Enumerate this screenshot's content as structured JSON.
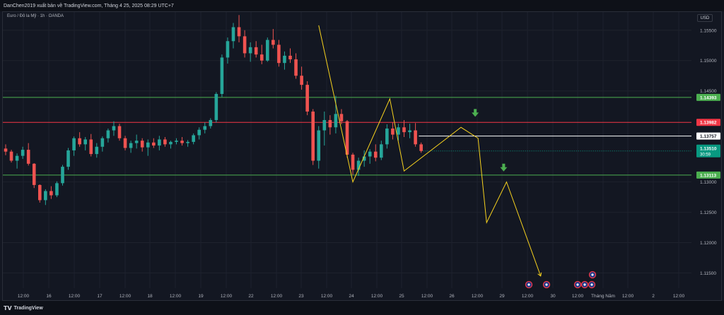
{
  "header": {
    "title": "DanChen2019 xuất bản về TradingView.com, Tháng 4 25, 2025 08:29 UTC+7"
  },
  "symbol": {
    "label": "Euro / Đô la Mỹ · 1h · OANDA"
  },
  "currency_button": "USD",
  "footer": {
    "brand": "TradingView"
  },
  "colors": {
    "background": "#131722",
    "up_candle": "#26a69a",
    "down_candle": "#ef5350",
    "support_line": "#4caf50",
    "resistance_line": "#f23645",
    "current_line": "#ffffff",
    "projection": "#f7d21e",
    "arrow": "#4caf50"
  },
  "chart_data": {
    "type": "candlestick",
    "title": "",
    "xlabel": "",
    "ylabel": "",
    "ylim": [
      1.1125,
      1.158
    ],
    "grid": true,
    "y_ticks": [
      "1.15500",
      "1.15000",
      "1.14500",
      "1.13000",
      "1.12500",
      "1.12000",
      "1.11500"
    ],
    "y_tick_values": [
      1.155,
      1.15,
      1.145,
      1.13,
      1.125,
      1.12,
      1.115
    ],
    "x_ticks": [
      "12:00",
      "16",
      "12:00",
      "17",
      "12:00",
      "18",
      "12:00",
      "19",
      "12:00",
      "22",
      "12:00",
      "23",
      "12:00",
      "24",
      "12:00",
      "25",
      "12:00",
      "26",
      "12:00",
      "29",
      "12:00",
      "30",
      "12:00",
      "Tháng Năm",
      "12:00",
      "2",
      "12:00"
    ],
    "price_levels": [
      {
        "label": "1.14393",
        "value": 1.14393,
        "style": "support",
        "color": "#4caf50"
      },
      {
        "label": "1.13982",
        "value": 1.13982,
        "style": "resistance",
        "color": "#f23645"
      },
      {
        "label": "1.13757",
        "value": 1.13757,
        "style": "current",
        "color": "#ffffff"
      },
      {
        "label": "1.13113",
        "value": 1.13113,
        "style": "support",
        "color": "#4caf50"
      }
    ],
    "last_price": {
      "label": "1.13510",
      "value": 1.1351,
      "countdown": "30:59",
      "color": "#089981"
    },
    "projection_path": [
      {
        "t": 55.0,
        "price": 1.1558
      },
      {
        "t": 61.0,
        "price": 1.13
      },
      {
        "t": 67.5,
        "price": 1.1437
      },
      {
        "t": 70.0,
        "price": 1.1318
      },
      {
        "t": 80.0,
        "price": 1.139
      },
      {
        "t": 83.0,
        "price": 1.1372
      },
      {
        "t": 84.5,
        "price": 1.1233
      },
      {
        "t": 88.0,
        "price": 1.13
      },
      {
        "t": 94.0,
        "price": 1.1145
      }
    ],
    "arrows": [
      {
        "t": 82.5,
        "price": 1.1412,
        "direction": "down"
      },
      {
        "t": 87.5,
        "price": 1.1322,
        "direction": "down"
      }
    ],
    "candles": [
      [
        1.1355,
        1.1362,
        1.1344,
        1.135
      ],
      [
        1.135,
        1.1353,
        1.1332,
        1.1335
      ],
      [
        1.1335,
        1.1347,
        1.1322,
        1.1343
      ],
      [
        1.1343,
        1.1358,
        1.1338,
        1.1353
      ],
      [
        1.1353,
        1.1364,
        1.1327,
        1.133
      ],
      [
        1.133,
        1.1331,
        1.129,
        1.1295
      ],
      [
        1.1295,
        1.1296,
        1.1266,
        1.127
      ],
      [
        1.127,
        1.1288,
        1.1262,
        1.1285
      ],
      [
        1.1285,
        1.1293,
        1.1272,
        1.1278
      ],
      [
        1.1278,
        1.1301,
        1.1275,
        1.1298
      ],
      [
        1.1298,
        1.1328,
        1.1294,
        1.1325
      ],
      [
        1.1325,
        1.1356,
        1.132,
        1.1352
      ],
      [
        1.1352,
        1.1375,
        1.1343,
        1.1372
      ],
      [
        1.1372,
        1.1382,
        1.1358,
        1.1362
      ],
      [
        1.1362,
        1.1374,
        1.1352,
        1.137
      ],
      [
        1.137,
        1.1379,
        1.1342,
        1.1346
      ],
      [
        1.1346,
        1.1364,
        1.134,
        1.1358
      ],
      [
        1.1358,
        1.1375,
        1.135,
        1.1372
      ],
      [
        1.1372,
        1.1388,
        1.1365,
        1.1385
      ],
      [
        1.1385,
        1.14,
        1.1376,
        1.1392
      ],
      [
        1.1392,
        1.1396,
        1.1368,
        1.1372
      ],
      [
        1.1372,
        1.1376,
        1.1352,
        1.1356
      ],
      [
        1.1356,
        1.1368,
        1.1348,
        1.1364
      ],
      [
        1.1364,
        1.1378,
        1.1355,
        1.1368
      ],
      [
        1.1368,
        1.1372,
        1.135,
        1.1357
      ],
      [
        1.1357,
        1.137,
        1.1343,
        1.1365
      ],
      [
        1.1365,
        1.1372,
        1.1356,
        1.136
      ],
      [
        1.136,
        1.1376,
        1.1352,
        1.137
      ],
      [
        1.137,
        1.1374,
        1.1358,
        1.1362
      ],
      [
        1.1362,
        1.1368,
        1.1355,
        1.1366
      ],
      [
        1.1366,
        1.1372,
        1.1362,
        1.1368
      ],
      [
        1.1368,
        1.1374,
        1.136,
        1.1364
      ],
      [
        1.1364,
        1.1369,
        1.1358,
        1.1366
      ],
      [
        1.1366,
        1.138,
        1.1362,
        1.1377
      ],
      [
        1.1377,
        1.139,
        1.137,
        1.1386
      ],
      [
        1.1386,
        1.1398,
        1.138,
        1.1392
      ],
      [
        1.1392,
        1.1405,
        1.1388,
        1.1402
      ],
      [
        1.1402,
        1.1448,
        1.1398,
        1.1445
      ],
      [
        1.1445,
        1.151,
        1.144,
        1.1505
      ],
      [
        1.1505,
        1.1538,
        1.1495,
        1.1532
      ],
      [
        1.1532,
        1.1562,
        1.152,
        1.1555
      ],
      [
        1.1555,
        1.1575,
        1.153,
        1.154
      ],
      [
        1.154,
        1.155,
        1.1505,
        1.1512
      ],
      [
        1.1512,
        1.153,
        1.1498,
        1.1522
      ],
      [
        1.1522,
        1.1532,
        1.1505,
        1.151
      ],
      [
        1.151,
        1.1526,
        1.1494,
        1.15
      ],
      [
        1.15,
        1.1538,
        1.1498,
        1.1534
      ],
      [
        1.1534,
        1.1552,
        1.152,
        1.1526
      ],
      [
        1.1526,
        1.1534,
        1.149,
        1.1496
      ],
      [
        1.1496,
        1.1515,
        1.1485,
        1.1508
      ],
      [
        1.1508,
        1.152,
        1.1496,
        1.1502
      ],
      [
        1.1502,
        1.1512,
        1.147,
        1.1475
      ],
      [
        1.1475,
        1.149,
        1.1452,
        1.146
      ],
      [
        1.146,
        1.1466,
        1.141,
        1.1416
      ],
      [
        1.1416,
        1.142,
        1.1328,
        1.1335
      ],
      [
        1.1335,
        1.1392,
        1.1322,
        1.1385
      ],
      [
        1.1385,
        1.1416,
        1.136,
        1.1402
      ],
      [
        1.1402,
        1.141,
        1.1378,
        1.139
      ],
      [
        1.139,
        1.1442,
        1.138,
        1.1412
      ],
      [
        1.1412,
        1.142,
        1.1395,
        1.14
      ],
      [
        1.14,
        1.1402,
        1.134,
        1.1345
      ],
      [
        1.1345,
        1.1348,
        1.1312,
        1.132
      ],
      [
        1.132,
        1.134,
        1.131,
        1.1335
      ],
      [
        1.1335,
        1.1352,
        1.1325,
        1.1342
      ],
      [
        1.1342,
        1.1354,
        1.133,
        1.135
      ],
      [
        1.135,
        1.1362,
        1.1334,
        1.134
      ],
      [
        1.134,
        1.1368,
        1.1336,
        1.1362
      ],
      [
        1.1362,
        1.1395,
        1.1355,
        1.1388
      ],
      [
        1.1388,
        1.1398,
        1.137,
        1.1378
      ],
      [
        1.1378,
        1.1396,
        1.1368,
        1.139
      ],
      [
        1.139,
        1.1402,
        1.1374,
        1.1382
      ],
      [
        1.1382,
        1.1396,
        1.1372,
        1.1385
      ],
      [
        1.1385,
        1.1397,
        1.1358,
        1.1362
      ],
      [
        1.1362,
        1.1365,
        1.1348,
        1.1351
      ]
    ]
  }
}
